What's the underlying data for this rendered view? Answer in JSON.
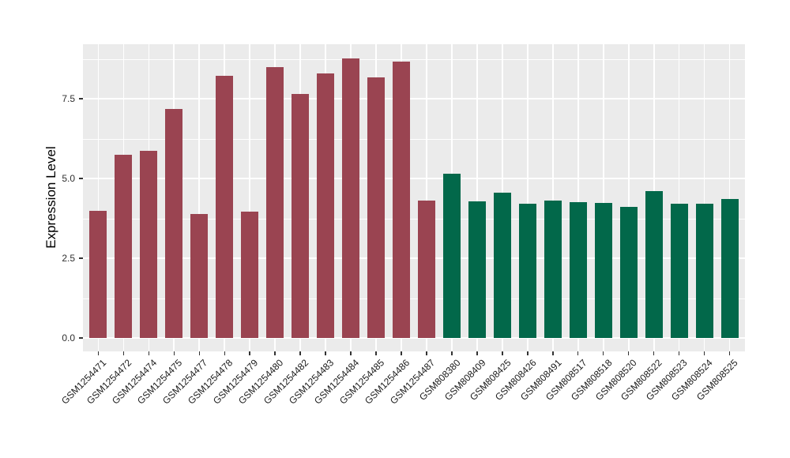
{
  "figure": {
    "background_color": "#FFFFFF",
    "panel_background_color": "#EBEBEB",
    "gridline_color": "#FFFFFF",
    "tick_color": "#333333"
  },
  "chart_data": {
    "type": "bar",
    "title": "",
    "xlabel": "",
    "ylabel": "Expression Level",
    "ylim": [
      -0.46,
      9.22
    ],
    "yticks": [
      0,
      2.5,
      5,
      7.5
    ],
    "ytick_labels": [
      "0.0",
      "2.5",
      "5.0",
      "7.5"
    ],
    "minor_yticks": [
      1.25,
      3.75,
      6.25,
      8.75
    ],
    "grid": "horizontal major+minor white lines, vertical major white line at each category center",
    "legend_position": "none",
    "x_tick_label_angle": 45,
    "bar_color_maroon": "#9A4451",
    "bar_color_green": "#02684A",
    "bars": [
      {
        "label": "GSM1254471",
        "value": 3.98,
        "color": "#9A4451"
      },
      {
        "label": "GSM1254472",
        "value": 5.74,
        "color": "#9A4451"
      },
      {
        "label": "GSM1254474",
        "value": 5.87,
        "color": "#9A4451"
      },
      {
        "label": "GSM1254475",
        "value": 7.19,
        "color": "#9A4451"
      },
      {
        "label": "GSM1254477",
        "value": 3.89,
        "color": "#9A4451"
      },
      {
        "label": "GSM1254478",
        "value": 8.22,
        "color": "#9A4451"
      },
      {
        "label": "GSM1254479",
        "value": 3.95,
        "color": "#9A4451"
      },
      {
        "label": "GSM1254480",
        "value": 8.49,
        "color": "#9A4451"
      },
      {
        "label": "GSM1254482",
        "value": 7.65,
        "color": "#9A4451"
      },
      {
        "label": "GSM1254483",
        "value": 8.29,
        "color": "#9A4451"
      },
      {
        "label": "GSM1254484",
        "value": 8.76,
        "color": "#9A4451"
      },
      {
        "label": "GSM1254485",
        "value": 8.18,
        "color": "#9A4451"
      },
      {
        "label": "GSM1254486",
        "value": 8.66,
        "color": "#9A4451"
      },
      {
        "label": "GSM1254487",
        "value": 4.31,
        "color": "#9A4451"
      },
      {
        "label": "GSM808380",
        "value": 5.16,
        "color": "#02684A"
      },
      {
        "label": "GSM808409",
        "value": 4.27,
        "color": "#02684A"
      },
      {
        "label": "GSM808425",
        "value": 4.55,
        "color": "#02684A"
      },
      {
        "label": "GSM808426",
        "value": 4.2,
        "color": "#02684A"
      },
      {
        "label": "GSM808491",
        "value": 4.31,
        "color": "#02684A"
      },
      {
        "label": "GSM808517",
        "value": 4.26,
        "color": "#02684A"
      },
      {
        "label": "GSM808518",
        "value": 4.23,
        "color": "#02684A"
      },
      {
        "label": "GSM808520",
        "value": 4.11,
        "color": "#02684A"
      },
      {
        "label": "GSM808522",
        "value": 4.6,
        "color": "#02684A"
      },
      {
        "label": "GSM808523",
        "value": 4.2,
        "color": "#02684A"
      },
      {
        "label": "GSM808524",
        "value": 4.2,
        "color": "#02684A"
      },
      {
        "label": "GSM808525",
        "value": 4.35,
        "color": "#02684A"
      }
    ]
  }
}
